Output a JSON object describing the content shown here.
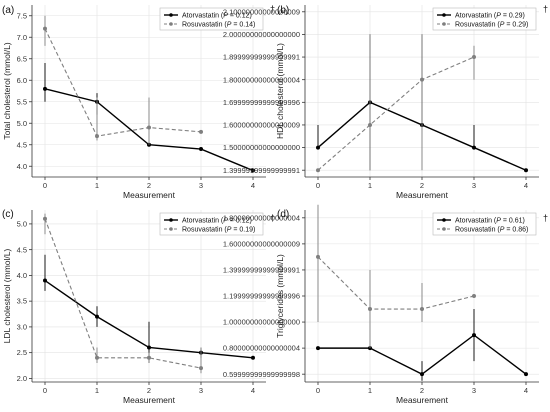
{
  "chart_data": [
    {
      "type": "line",
      "panel_label": "(a)",
      "marker": "†",
      "xlabel": "Measurement",
      "ylabel": "Total cholesterol (mmol/L)",
      "x_ticks": [
        0,
        1,
        2,
        3,
        4
      ],
      "y_ticks": [
        4.0,
        4.5,
        5.0,
        5.5,
        6.0,
        6.5,
        7.0,
        7.5
      ],
      "xlim": [
        -0.25,
        4.25
      ],
      "ylim": [
        3.75,
        7.75
      ],
      "grid": true,
      "legend_position": "top-right",
      "series": [
        {
          "name": "Atorvastatin",
          "p_prefix": "P",
          "p_value": "= 0.12",
          "style": "solid",
          "color": "#000000",
          "x": [
            0,
            1,
            2,
            3,
            4
          ],
          "values": [
            5.8,
            5.5,
            4.5,
            4.4,
            3.9
          ],
          "err_low": [
            5.5,
            5.2,
            null,
            null,
            null
          ],
          "err_high": [
            6.4,
            5.7,
            null,
            null,
            null
          ]
        },
        {
          "name": "Rosuvastatin",
          "p_prefix": "P",
          "p_value": "= 0.14",
          "style": "dashed",
          "color": "#7f7f7f",
          "x": [
            0,
            1,
            2,
            3
          ],
          "values": [
            7.2,
            4.7,
            4.9,
            4.8
          ],
          "err_low": [
            6.8,
            4.6,
            4.5,
            null
          ],
          "err_high": [
            7.5,
            5.6,
            5.6,
            null
          ]
        }
      ]
    },
    {
      "type": "line",
      "panel_label": "(b)",
      "marker": "†",
      "xlabel": "Measurement",
      "ylabel": "HDL cholesterol (mmol/L)",
      "x_ticks": [
        0,
        1,
        2,
        3,
        4
      ],
      "y_ticks": [
        1.4,
        1.5,
        1.6,
        1.7,
        1.8,
        1.9,
        2.0,
        2.1
      ],
      "xlim": [
        -0.25,
        4.25
      ],
      "ylim": [
        1.37,
        2.13
      ],
      "grid": true,
      "legend_position": "top-right",
      "series": [
        {
          "name": "Atorvastatin",
          "p_prefix": "P",
          "p_value": "= 0.29",
          "style": "solid",
          "color": "#000000",
          "x": [
            0,
            1,
            2,
            3,
            4
          ],
          "values": [
            1.5,
            1.7,
            1.6,
            1.5,
            1.4
          ],
          "err_low": [
            1.5,
            1.4,
            1.6,
            1.5,
            null
          ],
          "err_high": [
            1.6,
            2.0,
            2.0,
            1.6,
            null
          ]
        },
        {
          "name": "Rosuvastatin",
          "p_prefix": "P",
          "p_value": "= 0.29",
          "style": "dashed",
          "color": "#7f7f7f",
          "x": [
            0,
            1,
            2,
            3
          ],
          "values": [
            1.4,
            1.6,
            1.8,
            1.9
          ],
          "err_low": [
            null,
            1.4,
            1.4,
            1.8
          ],
          "err_high": [
            null,
            2.0,
            2.0,
            1.95
          ]
        }
      ]
    },
    {
      "type": "line",
      "panel_label": "(c)",
      "marker": "†",
      "xlabel": "Measurement",
      "ylabel": "LDL cholesterol (mmol/L)",
      "x_ticks": [
        0,
        1,
        2,
        3,
        4
      ],
      "y_ticks": [
        2.0,
        2.5,
        3.0,
        3.5,
        4.0,
        4.5,
        5.0
      ],
      "xlim": [
        -0.25,
        4.25
      ],
      "ylim": [
        1.93,
        5.27
      ],
      "grid": true,
      "legend_position": "top-right",
      "series": [
        {
          "name": "Atorvastatin",
          "p_prefix": "P",
          "p_value": "= 0.12",
          "style": "solid",
          "color": "#000000",
          "x": [
            0,
            1,
            2,
            3,
            4
          ],
          "values": [
            3.9,
            3.2,
            2.6,
            2.5,
            2.4
          ],
          "err_low": [
            3.7,
            3.0,
            2.3,
            2.4,
            null
          ],
          "err_high": [
            4.4,
            3.4,
            3.1,
            2.6,
            null
          ]
        },
        {
          "name": "Rosuvastatin",
          "p_prefix": "P",
          "p_value": "= 0.19",
          "style": "dashed",
          "color": "#7f7f7f",
          "x": [
            0,
            1,
            2,
            3
          ],
          "values": [
            5.1,
            2.4,
            2.4,
            2.2
          ],
          "err_low": [
            4.8,
            2.3,
            2.3,
            2.1
          ],
          "err_high": [
            5.2,
            2.6,
            2.5,
            2.6
          ]
        }
      ]
    },
    {
      "type": "line",
      "panel_label": "(d)",
      "marker": "†",
      "xlabel": "Measurement",
      "ylabel": "Triglycerides (mmol/L)",
      "x_ticks": [
        0,
        1,
        2,
        3,
        4
      ],
      "y_ticks": [
        0.6,
        0.8,
        1.0,
        1.2,
        1.4,
        1.6,
        1.8
      ],
      "xlim": [
        -0.25,
        4.25
      ],
      "ylim": [
        0.54,
        1.86
      ],
      "grid": true,
      "legend_position": "top-right",
      "series": [
        {
          "name": "Atorvastatin",
          "p_prefix": "P",
          "p_value": "= 0.61",
          "style": "solid",
          "color": "#000000",
          "x": [
            0,
            1,
            2,
            3,
            4
          ],
          "values": [
            0.8,
            0.8,
            0.6,
            0.9,
            0.6
          ],
          "err_low": [
            null,
            null,
            0.55,
            0.7,
            null
          ],
          "err_high": [
            null,
            null,
            0.7,
            1.1,
            null
          ]
        },
        {
          "name": "Rosuvastatin",
          "p_prefix": "P",
          "p_value": "= 0.86",
          "style": "dashed",
          "color": "#7f7f7f",
          "x": [
            0,
            1,
            2,
            3
          ],
          "values": [
            1.5,
            1.1,
            1.1,
            1.2
          ],
          "err_low": [
            1.0,
            0.8,
            1.0,
            null
          ],
          "err_high": [
            1.9,
            1.4,
            1.3,
            null
          ]
        }
      ]
    }
  ]
}
